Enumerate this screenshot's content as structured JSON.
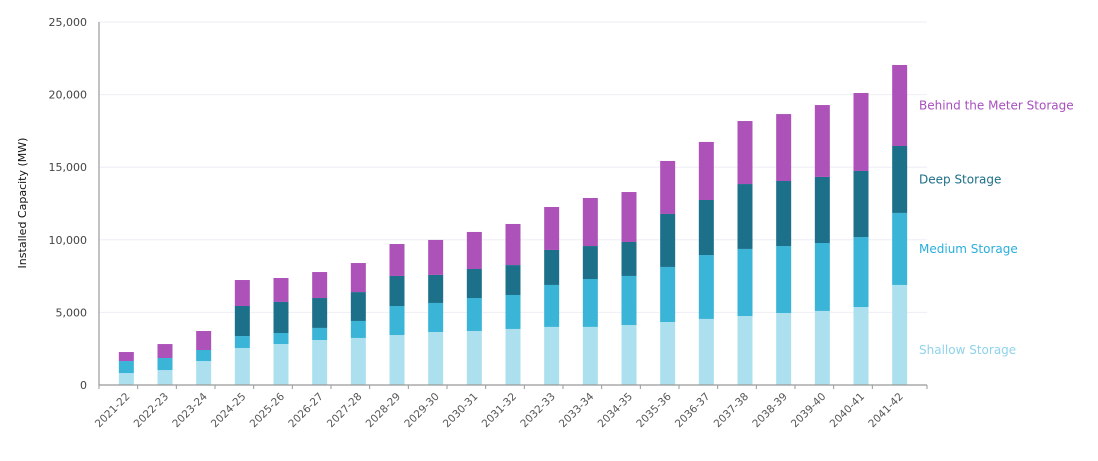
{
  "chart_data": {
    "type": "bar",
    "stacked": true,
    "title": "",
    "xlabel": "",
    "ylabel": "Installed Capacity (MW)",
    "ylim": [
      0,
      25000
    ],
    "yticks": [
      0,
      5000,
      10000,
      15000,
      20000,
      25000
    ],
    "ytick_labels": [
      "0",
      "5,000",
      "10,000",
      "15,000",
      "20,000",
      "25,000"
    ],
    "grid": true,
    "legend_placement": "right (inline labels)",
    "categories": [
      "2021-22",
      "2022-23",
      "2023-24",
      "2024-25",
      "2025-26",
      "2026-27",
      "2027-28",
      "2028-29",
      "2029-30",
      "2030-31",
      "2031-32",
      "2032-33",
      "2033-34",
      "2034-35",
      "2035-36",
      "2036-37",
      "2037-38",
      "2038-39",
      "2039-40",
      "2040-41",
      "2041-42"
    ],
    "series": [
      {
        "name": "Shallow Storage",
        "color": "#ade0ee",
        "values": [
          820,
          1030,
          1650,
          2550,
          2820,
          3100,
          3240,
          3440,
          3650,
          3720,
          3860,
          4000,
          4000,
          4130,
          4340,
          4550,
          4750,
          4960,
          5100,
          5370,
          6890
        ]
      },
      {
        "name": "Medium Storage",
        "color": "#3ab4d7",
        "values": [
          830,
          830,
          760,
          820,
          760,
          830,
          1170,
          2000,
          2000,
          2270,
          2340,
          2890,
          3300,
          3380,
          3790,
          4400,
          4620,
          4610,
          4680,
          4820,
          4960
        ]
      },
      {
        "name": "Deep Storage",
        "color": "#1c7089",
        "values": [
          0,
          0,
          0,
          2070,
          2140,
          2060,
          1990,
          2070,
          1930,
          2000,
          2060,
          2410,
          2270,
          2340,
          3650,
          3790,
          4470,
          4480,
          4550,
          4550,
          4610
        ]
      },
      {
        "name": "Behind the Meter Storage",
        "color": "#ac52b9",
        "values": [
          620,
          960,
          1310,
          1790,
          1650,
          1790,
          2000,
          2200,
          2410,
          2550,
          2830,
          2960,
          3310,
          3440,
          3650,
          4000,
          4340,
          4610,
          4950,
          5370,
          5580
        ]
      }
    ]
  }
}
